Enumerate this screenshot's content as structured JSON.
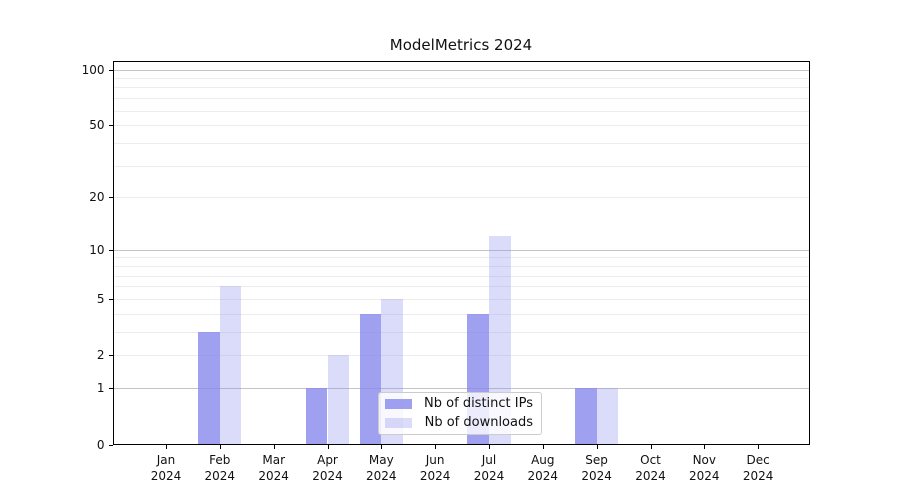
{
  "title": "ModelMetrics 2024",
  "chart_data": {
    "type": "bar",
    "title": "ModelMetrics 2024",
    "categories": [
      {
        "month": "Jan",
        "year": "2024"
      },
      {
        "month": "Feb",
        "year": "2024"
      },
      {
        "month": "Mar",
        "year": "2024"
      },
      {
        "month": "Apr",
        "year": "2024"
      },
      {
        "month": "May",
        "year": "2024"
      },
      {
        "month": "Jun",
        "year": "2024"
      },
      {
        "month": "Jul",
        "year": "2024"
      },
      {
        "month": "Aug",
        "year": "2024"
      },
      {
        "month": "Sep",
        "year": "2024"
      },
      {
        "month": "Oct",
        "year": "2024"
      },
      {
        "month": "Nov",
        "year": "2024"
      },
      {
        "month": "Dec",
        "year": "2024"
      }
    ],
    "series": [
      {
        "name": "Nb of distinct IPs",
        "color": "rgba(136,136,238,0.8)",
        "values": [
          0,
          3,
          0,
          1,
          4,
          0,
          4,
          0,
          1,
          0,
          0,
          0
        ]
      },
      {
        "name": "Nb of downloads",
        "color": "rgba(136,136,238,0.3)",
        "values": [
          0,
          6,
          0,
          2,
          5,
          0,
          12,
          0,
          1,
          0,
          0,
          0
        ]
      }
    ],
    "yscale": "log1p",
    "ylim": [
      0,
      111
    ],
    "ytick_labels": [
      "0",
      "1",
      "2",
      "5",
      "10",
      "20",
      "50",
      "100"
    ],
    "ytick_values": [
      0,
      1,
      2,
      5,
      10,
      20,
      50,
      100
    ],
    "grid_minor_values": [
      2,
      3,
      4,
      5,
      6,
      7,
      8,
      9,
      20,
      30,
      40,
      50,
      60,
      70,
      80,
      90
    ],
    "grid_major_values": [
      1,
      10,
      100
    ],
    "grid": true,
    "legend_position": "lower center",
    "legend_entries": [
      "Nb of distinct IPs",
      "Nb of downloads"
    ]
  }
}
